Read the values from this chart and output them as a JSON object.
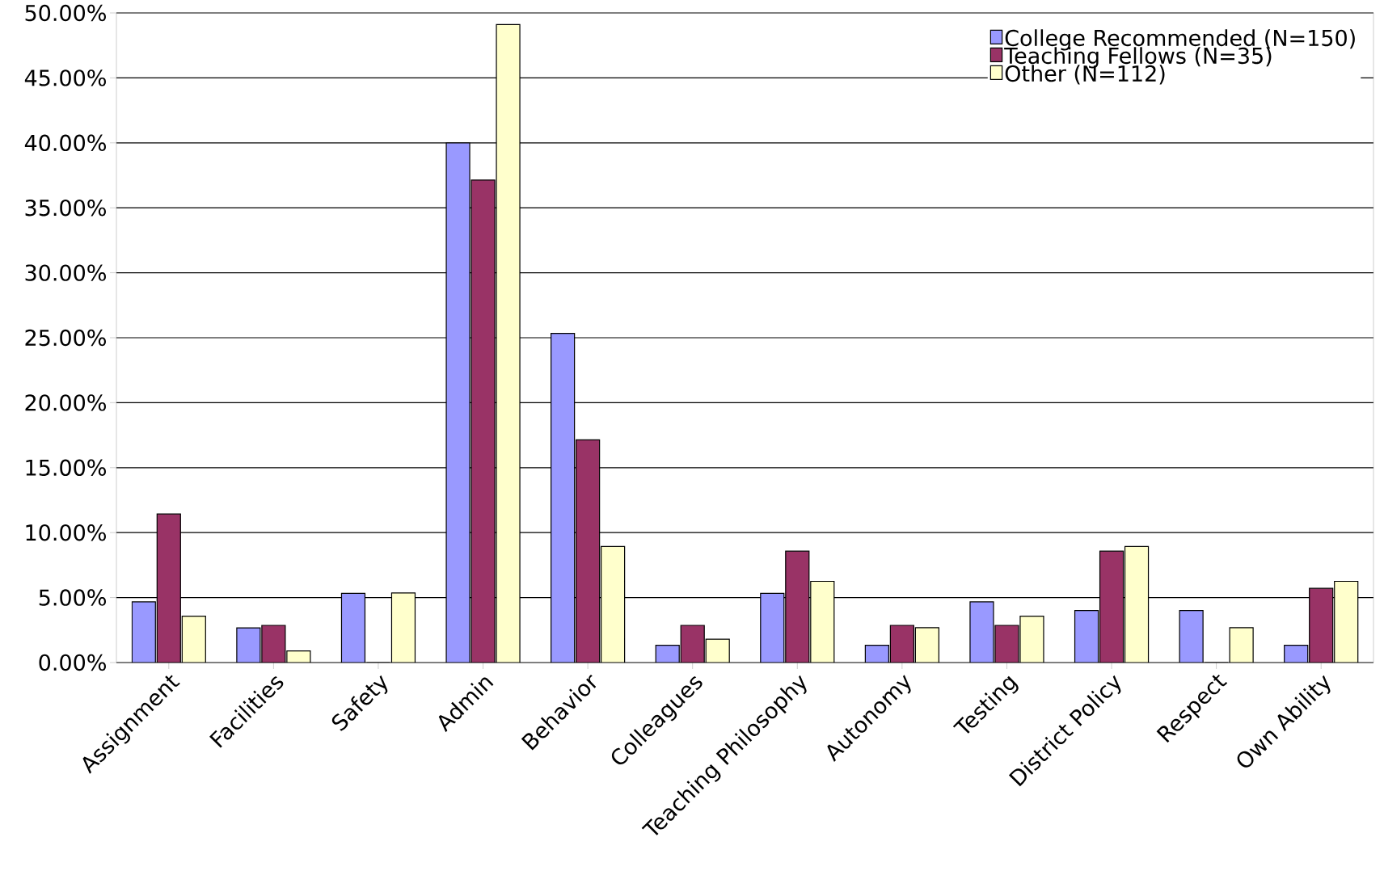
{
  "chart_data": {
    "type": "bar",
    "categories": [
      "Assignment",
      "Facilities",
      "Safety",
      "Admin",
      "Behavior",
      "Colleagues",
      "Teaching Philosophy",
      "Autonomy",
      "Testing",
      "District Policy",
      "Respect",
      "Own Ability"
    ],
    "series": [
      {
        "name": "College Recommended (N=150)",
        "color": "#9999ff",
        "values": [
          4.67,
          2.67,
          5.33,
          40.0,
          25.33,
          1.33,
          5.33,
          1.33,
          4.67,
          4.0,
          4.0,
          1.33
        ]
      },
      {
        "name": "Teaching Fellows (N=35)",
        "color": "#993366",
        "values": [
          11.43,
          2.86,
          0,
          37.14,
          17.14,
          2.86,
          8.57,
          2.86,
          2.86,
          8.57,
          0,
          5.71
        ]
      },
      {
        "name": "Other (N=112)",
        "color": "#ffffcc",
        "values": [
          3.57,
          0.89,
          5.36,
          49.11,
          8.93,
          1.79,
          6.25,
          2.68,
          3.57,
          8.93,
          2.68,
          6.25
        ]
      }
    ],
    "ylim": [
      0,
      50
    ],
    "yticks": [
      {
        "value": 0,
        "label": "0.00%"
      },
      {
        "value": 5,
        "label": "5.00%"
      },
      {
        "value": 10,
        "label": "10.00%"
      },
      {
        "value": 15,
        "label": "15.00%"
      },
      {
        "value": 20,
        "label": "20.00%"
      },
      {
        "value": 25,
        "label": "25.00%"
      },
      {
        "value": 30,
        "label": "30.00%"
      },
      {
        "value": 35,
        "label": "35.00%"
      },
      {
        "value": 40,
        "label": "40.00%"
      },
      {
        "value": 45,
        "label": "45.00%"
      },
      {
        "value": 50,
        "label": "50.00%"
      }
    ],
    "grid": "y",
    "legend": "top right"
  }
}
